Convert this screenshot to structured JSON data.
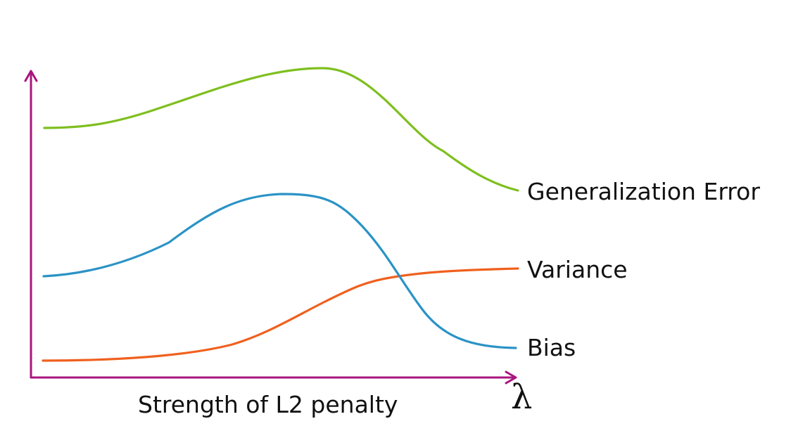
{
  "axis": {
    "x_label": "Strength of L2 penalty",
    "x_symbol": "λ",
    "color": "#a9157e"
  },
  "curves": [
    {
      "name": "generalization-error",
      "label": "Generalization Error",
      "color": "#7ebf1e"
    },
    {
      "name": "variance",
      "label": "Variance",
      "color": "#f0601e"
    },
    {
      "name": "bias",
      "label": "Bias",
      "color": "#2a93c6"
    }
  ]
}
